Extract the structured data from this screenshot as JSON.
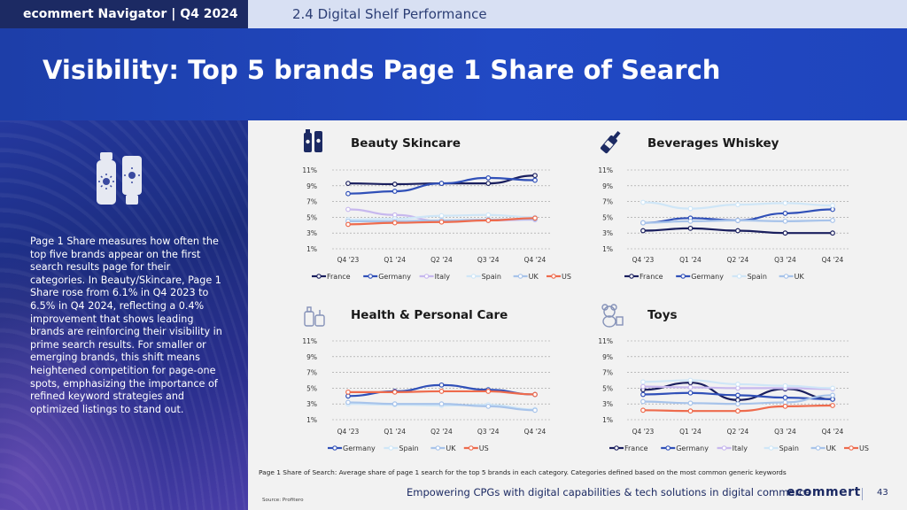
{
  "header": {
    "app_title": "ecommert Navigator  | Q4 2024",
    "section": "2.4 Digital Shelf Performance",
    "title": "Visibility: Top 5 brands Page 1 Share of Search"
  },
  "sidebar": {
    "description": "Page 1 Share measures how often the top five brands appear on the first search results page for their categories. In Beauty/Skincare, Page 1 Share rose from 6.1% in Q4 2023 to 6.5% in Q4 2024, reflecting a 0.4% improvement that shows leading brands are reinforcing their visibility in prime search results. For smaller or emerging brands, this shift means heightened competition for page-one spots, emphasizing the importance of refined keyword strategies and optimized listings to stand out.",
    "icon": "sunscreen-icon"
  },
  "colors": {
    "France": "#1a1f5e",
    "Germany": "#3050b8",
    "Italy": "#c7b8ee",
    "Spain": "#cfe6f7",
    "UK": "#a7c3ea",
    "US": "#ee6b4d"
  },
  "chart_data": [
    {
      "type": "line",
      "title": "Beauty Skincare",
      "icon": "beauty-products-icon",
      "categories": [
        "Q4 '23",
        "Q1 '24",
        "Q2 '24",
        "Q3 '24",
        "Q4 '24"
      ],
      "yticks": [
        "11%",
        "9%",
        "7%",
        "5%",
        "3%",
        "1%"
      ],
      "ylim": [
        1,
        11
      ],
      "grid": true,
      "legend_position": "bottom",
      "series": [
        {
          "name": "France",
          "values": [
            9.3,
            9.2,
            9.3,
            9.3,
            10.3
          ]
        },
        {
          "name": "Germany",
          "values": [
            8.0,
            8.3,
            9.3,
            10.0,
            9.7
          ]
        },
        {
          "name": "Italy",
          "values": [
            6.0,
            5.3,
            4.5,
            4.6,
            4.7
          ]
        },
        {
          "name": "Spain",
          "values": [
            4.7,
            4.8,
            5.2,
            5.3,
            5.0
          ]
        },
        {
          "name": "UK",
          "values": [
            4.5,
            4.5,
            4.6,
            4.7,
            4.8
          ]
        },
        {
          "name": "US",
          "values": [
            4.1,
            4.3,
            4.4,
            4.6,
            4.9
          ]
        }
      ]
    },
    {
      "type": "line",
      "title": "Beverages Whiskey",
      "icon": "whiskey-bottle-icon",
      "categories": [
        "Q4 '23",
        "Q1 '24",
        "Q2 '24",
        "Q3 '24",
        "Q4 '24"
      ],
      "yticks": [
        "11%",
        "9%",
        "7%",
        "5%",
        "3%",
        "1%"
      ],
      "ylim": [
        1,
        11
      ],
      "grid": true,
      "legend_position": "bottom",
      "series": [
        {
          "name": "France",
          "values": [
            3.3,
            3.6,
            3.3,
            3.0,
            3.0
          ]
        },
        {
          "name": "Germany",
          "values": [
            4.3,
            4.9,
            4.6,
            5.5,
            6.0
          ]
        },
        {
          "name": "Spain",
          "values": [
            6.9,
            6.1,
            6.6,
            6.8,
            6.5
          ]
        },
        {
          "name": "UK",
          "values": [
            4.3,
            4.5,
            4.6,
            4.5,
            4.6
          ]
        }
      ]
    },
    {
      "type": "line",
      "title": "Health & Personal Care",
      "icon": "personal-care-icon",
      "categories": [
        "Q4 '23",
        "Q1 '24",
        "Q2 '24",
        "Q3 '24",
        "Q4 '24"
      ],
      "yticks": [
        "11%",
        "9%",
        "7%",
        "5%",
        "3%",
        "1%"
      ],
      "ylim": [
        1,
        11
      ],
      "grid": true,
      "legend_position": "bottom",
      "series": [
        {
          "name": "Germany",
          "values": [
            4.0,
            4.6,
            5.4,
            4.8,
            4.2
          ]
        },
        {
          "name": "Spain",
          "values": [
            3.0,
            2.9,
            2.8,
            2.9,
            2.3
          ]
        },
        {
          "name": "UK",
          "values": [
            3.2,
            3.0,
            3.0,
            2.7,
            2.2
          ]
        },
        {
          "name": "US",
          "values": [
            4.5,
            4.5,
            4.6,
            4.6,
            4.2
          ]
        }
      ]
    },
    {
      "type": "line",
      "title": "Toys",
      "icon": "teddy-bear-icon",
      "categories": [
        "Q4 '23",
        "Q1 '24",
        "Q2 '24",
        "Q3 '24",
        "Q4 '24"
      ],
      "yticks": [
        "11%",
        "9%",
        "7%",
        "5%",
        "3%",
        "1%"
      ],
      "ylim": [
        1,
        11
      ],
      "grid": true,
      "legend_position": "bottom",
      "series": [
        {
          "name": "France",
          "values": [
            4.8,
            5.7,
            3.5,
            4.9,
            3.6
          ]
        },
        {
          "name": "Germany",
          "values": [
            4.2,
            4.4,
            4.1,
            3.8,
            3.6
          ]
        },
        {
          "name": "Italy",
          "values": [
            5.2,
            5.1,
            5.0,
            5.0,
            4.9
          ]
        },
        {
          "name": "Spain",
          "values": [
            5.8,
            6.0,
            5.5,
            5.3,
            5.0
          ]
        },
        {
          "name": "UK",
          "values": [
            3.3,
            3.1,
            3.0,
            3.2,
            4.1
          ]
        },
        {
          "name": "US",
          "values": [
            2.2,
            2.1,
            2.1,
            2.7,
            2.8
          ]
        }
      ]
    }
  ],
  "footer": {
    "footnote": "Page 1 Share of Search: Average share of page 1 search for the top 5 brands in each category. Categories defined based on the most common generic keywords",
    "source": "Source: Profitero",
    "tagline": "Empowering CPGs with digital capabilities & tech solutions in digital commerce",
    "logo": "ecommert",
    "page_number": "43"
  }
}
